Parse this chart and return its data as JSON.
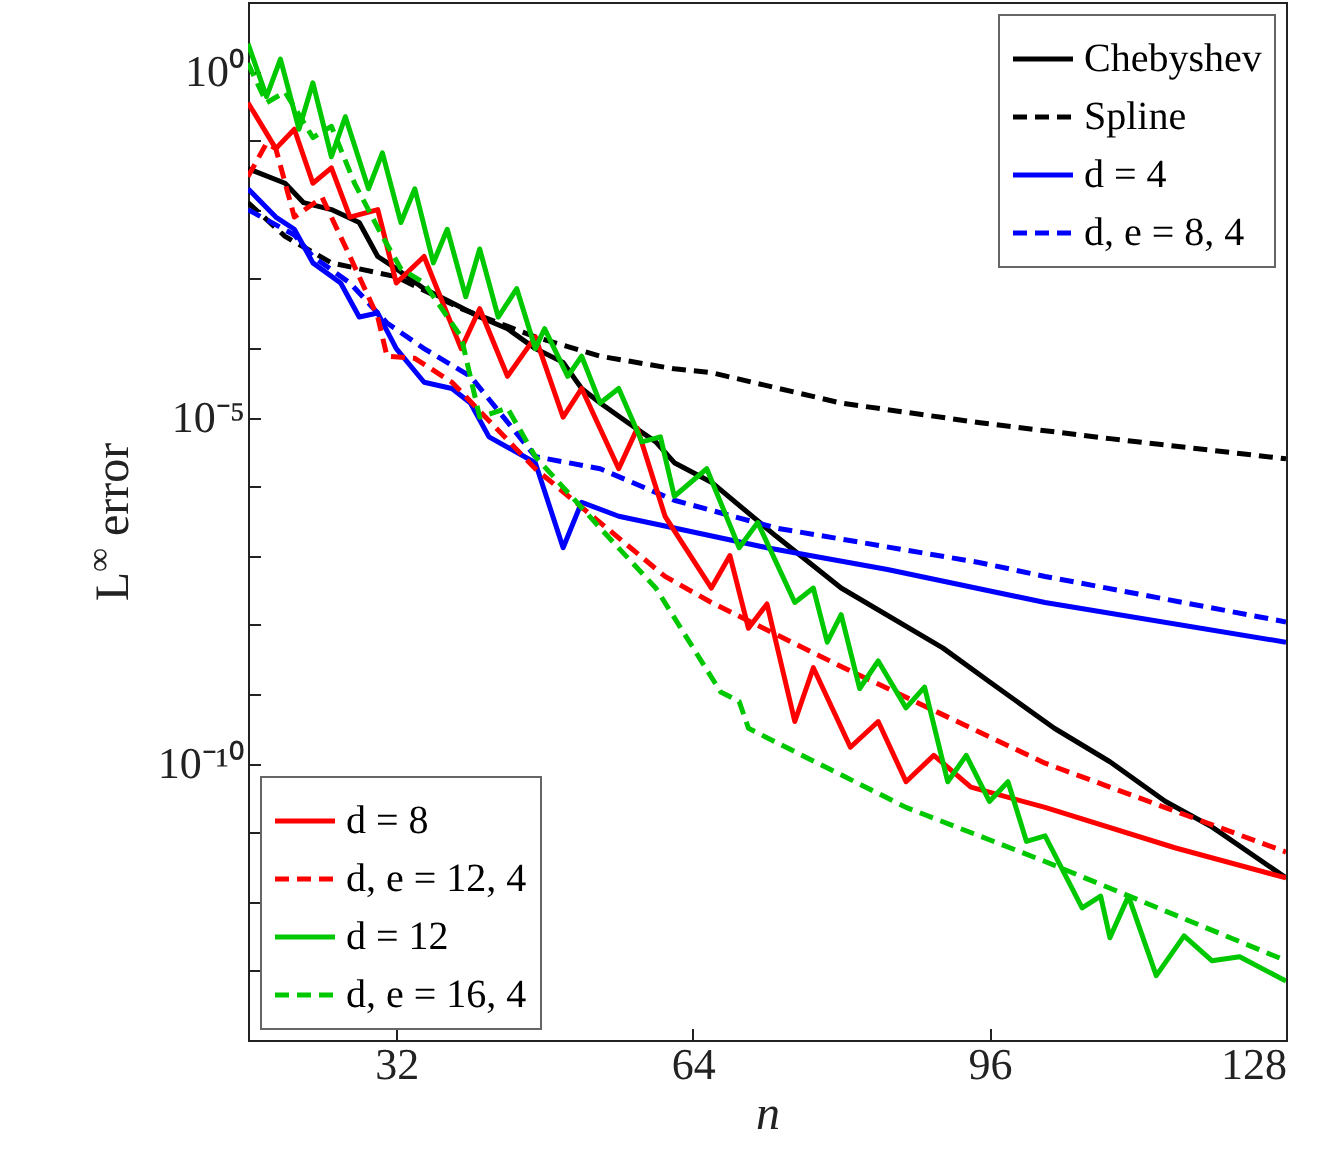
{
  "chart_data": {
    "type": "line",
    "xlabel": "n",
    "ylabel": "L$^{∞}$ error",
    "log": "y",
    "xlim": [
      16,
      128
    ],
    "xticks": [
      32,
      64,
      96,
      128
    ],
    "ylim": [
      1e-14,
      10
    ],
    "yticks": [
      {
        "value": 10,
        "label": null
      },
      {
        "value": 1,
        "label": "10⁰"
      },
      {
        "value": 0.1,
        "label": null
      },
      {
        "value": 0.01,
        "label": null
      },
      {
        "value": 0.001,
        "label": null
      },
      {
        "value": 0.0001,
        "label": null
      },
      {
        "value": 1e-05,
        "label": "10⁻⁵"
      },
      {
        "value": 1e-06,
        "label": null
      },
      {
        "value": 1e-07,
        "label": null
      },
      {
        "value": 1e-08,
        "label": null
      },
      {
        "value": 1e-09,
        "label": null
      },
      {
        "value": 1e-10,
        "label": "10⁻¹⁰"
      },
      {
        "value": 1e-11,
        "label": null
      },
      {
        "value": 1e-12,
        "label": null
      },
      {
        "value": 1e-13,
        "label": null
      },
      {
        "value": 1e-14,
        "label": null
      }
    ],
    "legend": [
      "top right",
      "bottom left"
    ],
    "series": [
      {
        "name": "Chebyshev",
        "color": "#000000",
        "line_style": "solid",
        "x": [
          16,
          20,
          22,
          25,
          28,
          30,
          32,
          35,
          38,
          41,
          44,
          47,
          50,
          52,
          54,
          57,
          60,
          62,
          66,
          73,
          80,
          91,
          96,
          103,
          109,
          115,
          120,
          128
        ],
        "values": [
          0.039,
          0.024,
          0.0126,
          0.01,
          0.0065,
          0.0021,
          0.0014,
          0.00072,
          0.00045,
          0.00028,
          0.00019,
          9.8e-05,
          6.2e-05,
          2.6e-05,
          1.6e-05,
          8.3e-06,
          4.4e-06,
          2.2e-06,
          1.15e-06,
          1.9e-07,
          3.4e-08,
          4.6e-09,
          1.5e-09,
          3.2e-10,
          1.05e-10,
          2.8e-11,
          1.2e-11,
          2.2e-12
        ]
      },
      {
        "name": "Spline",
        "color": "#000000",
        "line_style": "dashed",
        "x": [
          16,
          20,
          25,
          32,
          39,
          47,
          54,
          62,
          66,
          80,
          95,
          109,
          128
        ],
        "values": [
          0.0126,
          0.0041,
          0.0017,
          0.00107,
          0.00037,
          0.000145,
          7.6e-05,
          5e-05,
          4.4e-05,
          1.6e-05,
          8.3e-06,
          4.9e-06,
          2.5e-06
        ]
      },
      {
        "name": "d = 4",
        "color": "#0000ff",
        "line_style": "solid",
        "x": [
          16,
          19,
          21,
          23,
          26,
          28,
          30,
          32,
          35,
          38,
          40,
          42,
          47,
          50,
          52,
          56,
          62,
          72,
          85,
          102,
          128
        ],
        "values": [
          0.02,
          0.0078,
          0.0052,
          0.0017,
          0.00087,
          0.00028,
          0.00032,
          9.8e-05,
          3.2e-05,
          2.6e-05,
          1.6e-05,
          5.2e-06,
          2.2e-06,
          1.3e-07,
          5.9e-07,
          3.7e-07,
          2.5e-07,
          1.3e-07,
          6.3e-08,
          2.1e-08,
          5.6e-09
        ]
      },
      {
        "name": "d, e = 8, 4",
        "color": "#0000ff",
        "line_style": "dashed",
        "x": [
          16,
          21,
          23,
          27,
          31,
          35,
          40,
          47,
          54,
          62,
          73,
          95,
          102,
          128
        ],
        "values": [
          0.01,
          0.0043,
          0.0021,
          0.00087,
          0.00023,
          9.8e-05,
          3.9e-05,
          2.7e-06,
          1.8e-06,
          6.3e-07,
          2.5e-07,
          7.9e-08,
          5e-08,
          1.1e-08
        ]
      },
      {
        "name": "d = 8",
        "color": "#ff0000",
        "line_style": "solid",
        "x": [
          16,
          19,
          21,
          23,
          25,
          27,
          30,
          32,
          35,
          39,
          41,
          44,
          47,
          50,
          52,
          56,
          58,
          61,
          66,
          68,
          70,
          72,
          75,
          77,
          81,
          84,
          87,
          90,
          94,
          102,
          116,
          128
        ],
        "values": [
          0.35,
          0.076,
          0.145,
          0.024,
          0.04,
          0.0078,
          0.01,
          0.00087,
          0.0021,
          9.8e-05,
          0.00037,
          3.9e-05,
          0.000145,
          1e-05,
          2.6e-05,
          1.8e-06,
          6.9e-06,
          3.7e-07,
          3.4e-08,
          1e-07,
          8.9e-09,
          2e-08,
          4e-10,
          2.4e-09,
          1.7e-10,
          4e-10,
          5.4e-11,
          1.3e-10,
          4.5e-11,
          2.3e-11,
          6e-12,
          2.2e-12
        ]
      },
      {
        "name": "d, e = 12, 4",
        "color": "#ff0000",
        "line_style": "dashed",
        "x": [
          16,
          18,
          19,
          21,
          24,
          27,
          30,
          31,
          34,
          38,
          47,
          54,
          61,
          66,
          80,
          102,
          128
        ],
        "values": [
          0.03,
          0.091,
          0.076,
          0.0078,
          0.015,
          0.0021,
          0.00028,
          7.6e-05,
          7.1e-05,
          3.2e-05,
          1.8e-06,
          3e-07,
          5e-08,
          2.1e-08,
          2.5e-09,
          1e-10,
          5.2e-12
        ]
      },
      {
        "name": "d = 12",
        "color": "#00c800",
        "line_style": "solid",
        "x": [
          16,
          18,
          19.5,
          21.5,
          23,
          25,
          26.5,
          29,
          30.5,
          32.5,
          34,
          36,
          37.5,
          39.5,
          41,
          43,
          45,
          47,
          48,
          50.5,
          52,
          54,
          56,
          58.5,
          60.5,
          62,
          65.5,
          69,
          71,
          75,
          77,
          78.5,
          80,
          82,
          84,
          87,
          89,
          91.5,
          93.5,
          96,
          98,
          100,
          102,
          106,
          108,
          109,
          111,
          114,
          117,
          120,
          123,
          128
        ],
        "values": [
          2.5,
          0.43,
          1.5,
          0.145,
          0.68,
          0.058,
          0.22,
          0.02,
          0.066,
          0.0065,
          0.02,
          0.0017,
          0.0052,
          0.00055,
          0.0027,
          0.00028,
          0.00072,
          9.8e-05,
          0.00019,
          3.9e-05,
          7.6e-05,
          1.6e-05,
          2.6e-05,
          4.4e-06,
          5.2e-06,
          7.2e-07,
          1.8e-06,
          1.3e-07,
          3e-07,
          2.1e-08,
          3.4e-08,
          5.6e-09,
          1.4e-08,
          1.2e-09,
          3e-09,
          6.3e-10,
          1.26e-09,
          5.4e-11,
          1.3e-10,
          2.8e-11,
          5.4e-11,
          7.4e-12,
          8.9e-12,
          8.1e-13,
          1.2e-12,
          3e-13,
          1.2e-12,
          8.5e-14,
          3.2e-13,
          1.4e-13,
          1.6e-13,
          7.1e-14
        ]
      },
      {
        "name": "d, e = 16, 4",
        "color": "#00c800",
        "line_style": "dashed",
        "x": [
          16,
          18,
          20,
          23,
          25,
          27.5,
          30.5,
          32.5,
          35,
          39,
          41,
          44,
          47,
          54,
          60,
          67,
          69,
          70,
          73,
          87,
          102,
          128
        ],
        "values": [
          1.3,
          0.35,
          0.5,
          0.11,
          0.16,
          0.024,
          0.0041,
          0.0014,
          0.00087,
          0.000145,
          1e-05,
          1.35e-05,
          2.7e-06,
          2.5e-07,
          3.4e-08,
          1.07e-09,
          7.8e-10,
          3.2e-10,
          2e-10,
          2.3e-11,
          3.8e-12,
          1.4e-13
        ]
      }
    ]
  }
}
